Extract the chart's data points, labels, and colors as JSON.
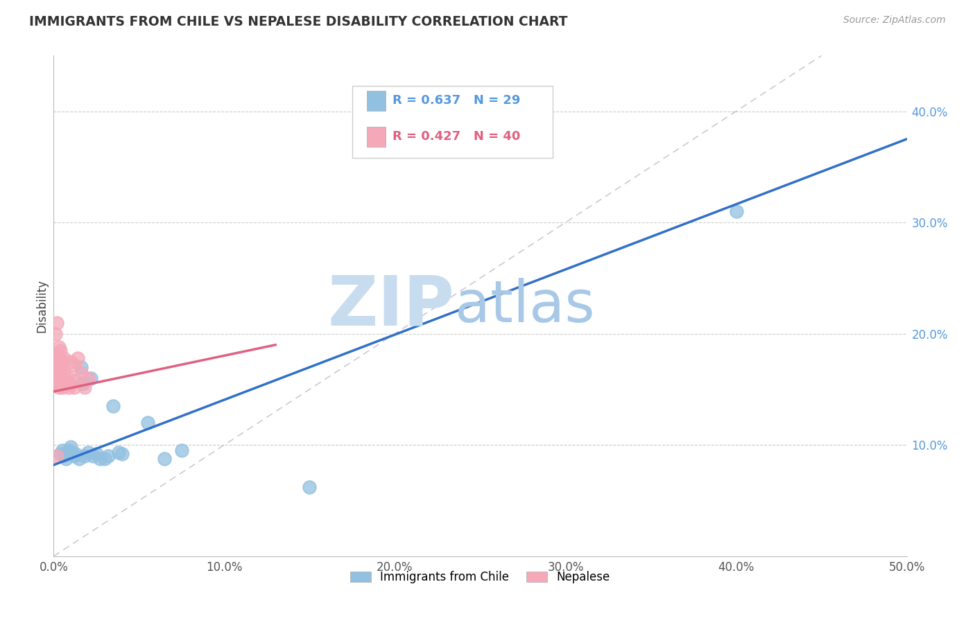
{
  "title": "IMMIGRANTS FROM CHILE VS NEPALESE DISABILITY CORRELATION CHART",
  "source": "Source: ZipAtlas.com",
  "ylabel": "Disability",
  "xlim": [
    0,
    0.5
  ],
  "ylim": [
    0,
    0.45
  ],
  "xticks": [
    0.0,
    0.1,
    0.2,
    0.3,
    0.4,
    0.5
  ],
  "yticks_right": [
    0.1,
    0.2,
    0.3,
    0.4
  ],
  "ytick_labels_right": [
    "10.0%",
    "20.0%",
    "30.0%",
    "40.0%"
  ],
  "xtick_labels": [
    "0.0%",
    "10.0%",
    "20.0%",
    "30.0%",
    "40.0%",
    "50.0%"
  ],
  "blue_color": "#92C0E0",
  "pink_color": "#F4A8B8",
  "blue_line_color": "#3070C8",
  "pink_line_color": "#E06080",
  "diag_color": "#D0C8D0",
  "watermark_zip": "ZIP",
  "watermark_atlas": "atlas",
  "watermark_color_zip": "#C8DCF0",
  "watermark_color_atlas": "#A8C8E8",
  "legend_R_blue": "R = 0.637",
  "legend_N_blue": "N = 29",
  "legend_R_pink": "R = 0.427",
  "legend_N_pink": "N = 40",
  "legend_label_blue": "Immigrants from Chile",
  "legend_label_pink": "Nepalese",
  "blue_x": [
    0.004,
    0.005,
    0.006,
    0.007,
    0.008,
    0.009,
    0.01,
    0.011,
    0.012,
    0.013,
    0.015,
    0.016,
    0.017,
    0.018,
    0.02,
    0.022,
    0.023,
    0.025,
    0.027,
    0.03,
    0.032,
    0.035,
    0.038,
    0.04,
    0.055,
    0.065,
    0.075,
    0.4,
    0.15
  ],
  "blue_y": [
    0.092,
    0.095,
    0.09,
    0.088,
    0.092,
    0.095,
    0.098,
    0.093,
    0.09,
    0.092,
    0.088,
    0.17,
    0.155,
    0.09,
    0.093,
    0.16,
    0.09,
    0.092,
    0.088,
    0.088,
    0.09,
    0.135,
    0.093,
    0.092,
    0.12,
    0.088,
    0.095,
    0.31,
    0.062
  ],
  "pink_x": [
    0.001,
    0.001,
    0.001,
    0.001,
    0.002,
    0.002,
    0.002,
    0.002,
    0.002,
    0.003,
    0.003,
    0.003,
    0.003,
    0.003,
    0.004,
    0.004,
    0.004,
    0.004,
    0.005,
    0.005,
    0.005,
    0.006,
    0.006,
    0.006,
    0.007,
    0.008,
    0.009,
    0.01,
    0.01,
    0.012,
    0.012,
    0.013,
    0.014,
    0.016,
    0.018,
    0.02,
    0.002,
    0.003,
    0.004,
    0.002
  ],
  "pink_y": [
    0.155,
    0.175,
    0.16,
    0.2,
    0.155,
    0.162,
    0.168,
    0.175,
    0.182,
    0.152,
    0.158,
    0.163,
    0.17,
    0.178,
    0.155,
    0.162,
    0.168,
    0.175,
    0.152,
    0.16,
    0.175,
    0.155,
    0.165,
    0.178,
    0.155,
    0.162,
    0.152,
    0.155,
    0.175,
    0.152,
    0.172,
    0.158,
    0.178,
    0.165,
    0.152,
    0.16,
    0.21,
    0.188,
    0.185,
    0.09
  ]
}
